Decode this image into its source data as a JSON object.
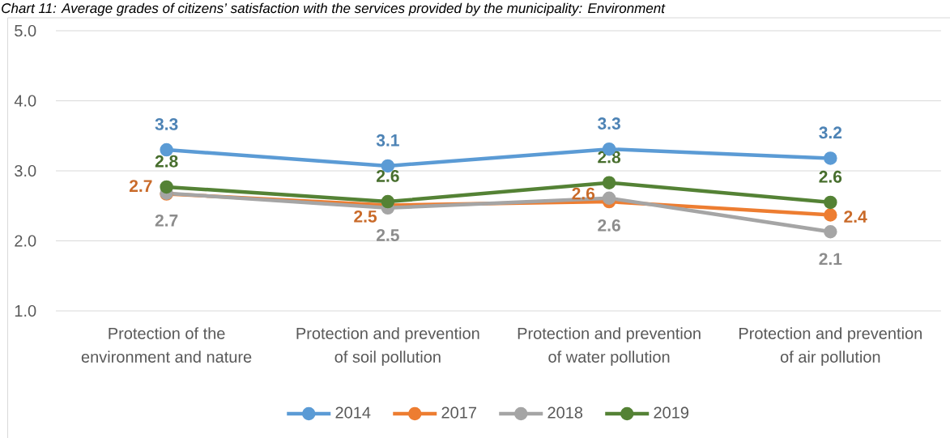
{
  "chart_data": {
    "type": "line",
    "title": "Chart 11: Average grades of citizens’ satisfaction with the services provided by the municipality: Environment",
    "categories": [
      "Protection of the environment and nature",
      "Protection and prevention of soil pollution",
      "Protection and prevention of water pollution",
      "Protection and prevention of air pollution"
    ],
    "series": [
      {
        "name": "2014",
        "color": "#5b9bd5",
        "values": [
          3.3,
          3.07,
          3.31,
          3.18
        ],
        "value_labels": [
          "3.3",
          "3.1",
          "3.3",
          "3.2"
        ]
      },
      {
        "name": "2017",
        "color": "#ed7d31",
        "values": [
          2.67,
          2.51,
          2.56,
          2.37
        ],
        "value_labels": [
          "2.7",
          "2.5",
          "2.6",
          "2.4"
        ]
      },
      {
        "name": "2018",
        "color": "#a5a5a5",
        "values": [
          2.68,
          2.47,
          2.61,
          2.13
        ],
        "value_labels": [
          "2.7",
          "2.5",
          "2.6",
          "2.1"
        ]
      },
      {
        "name": "2019",
        "color": "#548235",
        "values": [
          2.77,
          2.56,
          2.83,
          2.55
        ],
        "value_labels": [
          "2.8",
          "2.6",
          "2.8",
          "2.6"
        ]
      }
    ],
    "ylim": [
      1,
      5
    ],
    "yticks": [
      {
        "value": 1,
        "label": "1.0"
      },
      {
        "value": 2,
        "label": "2.0"
      },
      {
        "value": 3,
        "label": "3.0"
      },
      {
        "value": 4,
        "label": "4.0"
      },
      {
        "value": 5,
        "label": "5.0"
      }
    ],
    "grid": "y",
    "legend": "bottom",
    "marker": "circle",
    "line_style": "solid"
  }
}
